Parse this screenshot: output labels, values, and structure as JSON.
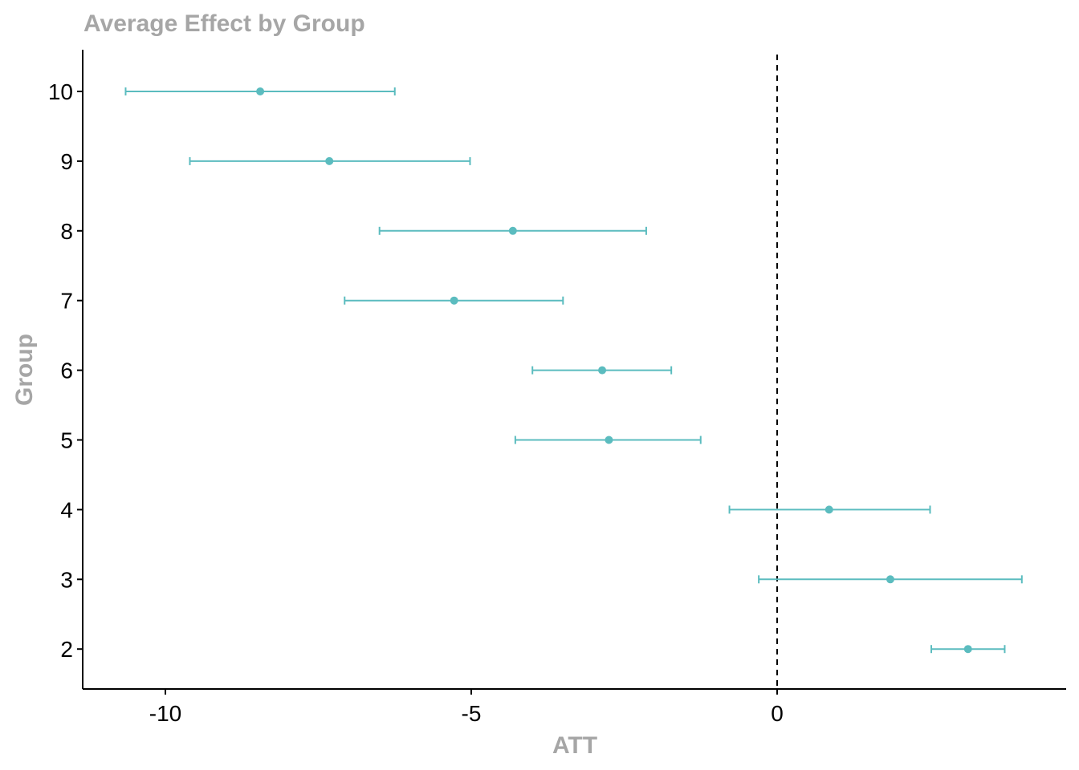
{
  "chart_data": {
    "type": "scatter",
    "subtype": "point-range",
    "title": "Average Effect by Group",
    "xlabel": "ATT",
    "ylabel": "Group",
    "xlim": [
      -11.3,
      4.7
    ],
    "x_ticks": [
      -10,
      -5,
      0
    ],
    "reference_line": {
      "x": 0,
      "style": "dashed"
    },
    "grid": false,
    "points": [
      {
        "group": "10",
        "att": -8.45,
        "lower": -10.65,
        "upper": -6.25
      },
      {
        "group": "9",
        "att": -7.32,
        "lower": -9.6,
        "upper": -5.02
      },
      {
        "group": "8",
        "att": -4.32,
        "lower": -6.5,
        "upper": -2.14
      },
      {
        "group": "7",
        "att": -5.28,
        "lower": -7.07,
        "upper": -3.5
      },
      {
        "group": "6",
        "att": -2.86,
        "lower": -4.0,
        "upper": -1.73
      },
      {
        "group": "5",
        "att": -2.75,
        "lower": -4.28,
        "upper": -1.25
      },
      {
        "group": "4",
        "att": 0.85,
        "lower": -0.78,
        "upper": 2.5
      },
      {
        "group": "3",
        "att": 1.85,
        "lower": -0.3,
        "upper": 4.0
      },
      {
        "group": "2",
        "att": 3.12,
        "lower": 2.52,
        "upper": 3.72
      }
    ],
    "colors": {
      "point": "#5bbcbf",
      "title_text": "#a6a6a6",
      "axis": "#000000"
    }
  }
}
